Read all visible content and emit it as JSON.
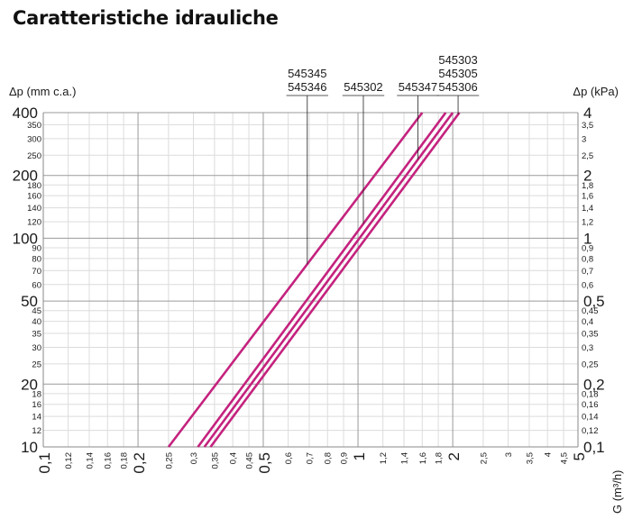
{
  "title": "Caratteristiche idrauliche",
  "chart_data": {
    "type": "line",
    "title": "Caratteristiche idrauliche",
    "xlabel": "G (m³/h)",
    "ylabel_left": "Δp (mm c.a.)",
    "ylabel_right": "Δp (kPa)",
    "x_scale": "log",
    "y_scale": "log",
    "xlim": [
      0.1,
      5
    ],
    "ylim": [
      10,
      400
    ],
    "grid": true,
    "x_ticks_major": [
      {
        "v": 0.1,
        "label": "0,1"
      },
      {
        "v": 0.2,
        "label": "0,2"
      },
      {
        "v": 0.5,
        "label": "0,5"
      },
      {
        "v": 1,
        "label": "1"
      },
      {
        "v": 2,
        "label": "2"
      },
      {
        "v": 5,
        "label": "5"
      }
    ],
    "x_ticks_minor": [
      {
        "v": 0.12,
        "label": "0,12"
      },
      {
        "v": 0.14,
        "label": "0,14"
      },
      {
        "v": 0.16,
        "label": "0,16"
      },
      {
        "v": 0.18,
        "label": "0,18"
      },
      {
        "v": 0.25,
        "label": "0,25"
      },
      {
        "v": 0.3,
        "label": "0,3"
      },
      {
        "v": 0.35,
        "label": "0,35"
      },
      {
        "v": 0.4,
        "label": "0,4"
      },
      {
        "v": 0.45,
        "label": "0,45"
      },
      {
        "v": 0.6,
        "label": "0,6"
      },
      {
        "v": 0.7,
        "label": "0,7"
      },
      {
        "v": 0.8,
        "label": "0,8"
      },
      {
        "v": 0.9,
        "label": "0,9"
      },
      {
        "v": 1.2,
        "label": "1,2"
      },
      {
        "v": 1.4,
        "label": "1,4"
      },
      {
        "v": 1.6,
        "label": "1,6"
      },
      {
        "v": 1.8,
        "label": "1,8"
      },
      {
        "v": 2.5,
        "label": "2,5"
      },
      {
        "v": 3,
        "label": "3"
      },
      {
        "v": 3.5,
        "label": "3,5"
      },
      {
        "v": 4,
        "label": "4"
      },
      {
        "v": 4.5,
        "label": "4,5"
      }
    ],
    "y_ticks_major": [
      {
        "v": 10,
        "left": "10",
        "right": "0,1"
      },
      {
        "v": 20,
        "left": "20",
        "right": "0,2"
      },
      {
        "v": 50,
        "left": "50",
        "right": "0,5"
      },
      {
        "v": 100,
        "left": "100",
        "right": "1"
      },
      {
        "v": 200,
        "left": "200",
        "right": "2"
      },
      {
        "v": 400,
        "left": "400",
        "right": "4"
      }
    ],
    "y_ticks_minor": [
      {
        "v": 12,
        "left": "12",
        "right": "0,12"
      },
      {
        "v": 14,
        "left": "14",
        "right": "0,14"
      },
      {
        "v": 16,
        "left": "16",
        "right": "0,16"
      },
      {
        "v": 18,
        "left": "18",
        "right": "0,18"
      },
      {
        "v": 25,
        "left": "25",
        "right": "0,25"
      },
      {
        "v": 30,
        "left": "30",
        "right": "0,3"
      },
      {
        "v": 35,
        "left": "35",
        "right": "0,35"
      },
      {
        "v": 40,
        "left": "40",
        "right": "0,4"
      },
      {
        "v": 45,
        "left": "45",
        "right": "0,45"
      },
      {
        "v": 60,
        "left": "60",
        "right": "0,6"
      },
      {
        "v": 70,
        "left": "70",
        "right": "0,7"
      },
      {
        "v": 80,
        "left": "80",
        "right": "0,8"
      },
      {
        "v": 90,
        "left": "90",
        "right": "0,9"
      },
      {
        "v": 120,
        "left": "120",
        "right": "1,2"
      },
      {
        "v": 140,
        "left": "140",
        "right": "1,4"
      },
      {
        "v": 160,
        "left": "160",
        "right": "1,6"
      },
      {
        "v": 180,
        "left": "180",
        "right": "1,8"
      },
      {
        "v": 250,
        "left": "250",
        "right": "2,5"
      },
      {
        "v": 300,
        "left": "300",
        "right": "3"
      },
      {
        "v": 350,
        "left": "350",
        "right": "3,5"
      }
    ],
    "series": [
      {
        "name": "545345 / 545346",
        "x": [
          0.25,
          1.6
        ],
        "y": [
          10,
          400
        ]
      },
      {
        "name": "545302",
        "x": [
          0.31,
          1.9
        ],
        "y": [
          10,
          400
        ]
      },
      {
        "name": "545347",
        "x": [
          0.325,
          2.0
        ],
        "y": [
          10,
          400
        ]
      },
      {
        "name": "545303 / 545305 / 545306",
        "x": [
          0.34,
          2.1
        ],
        "y": [
          10,
          400
        ]
      }
    ],
    "line_color": "#c4227e",
    "legend_labels": [
      {
        "lines": [
          "545345",
          "545346"
        ],
        "series": 0,
        "point_x": 0.69
      },
      {
        "lines": [
          "545302"
        ],
        "series": 1,
        "point_x": 1.04
      },
      {
        "lines": [
          "545347"
        ],
        "series": 2,
        "point_x": 1.55
      },
      {
        "lines": [
          "545303",
          "545305",
          "545306"
        ],
        "series": 3,
        "point_x": 2.08
      }
    ]
  }
}
